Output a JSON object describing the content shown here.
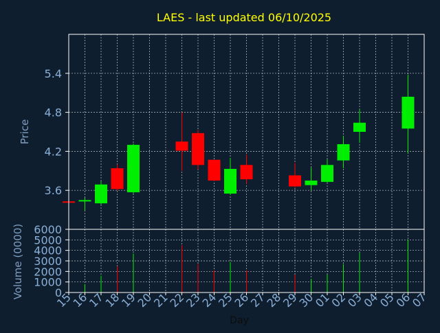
{
  "chart_data": {
    "type": "candlestick",
    "title": "LAES - last updated 06/10/2025",
    "xlabel": "Day",
    "price_panel": {
      "ylabel": "Price",
      "yticks": [
        3.6,
        4.2,
        4.8,
        5.4
      ],
      "ylim": [
        3.0,
        6.0
      ],
      "grid": true
    },
    "volume_panel": {
      "ylabel": "Volume (0000)",
      "yticks": [
        0,
        1000,
        2000,
        3000,
        4000,
        5000,
        6000
      ],
      "ylim": [
        0,
        6000
      ],
      "grid": true
    },
    "x_tick_labels": [
      "15",
      "16",
      "17",
      "18",
      "19",
      "20",
      "21",
      "22",
      "23",
      "24",
      "25",
      "26",
      "27",
      "28",
      "29",
      "30",
      "01",
      "02",
      "03",
      "04",
      "05",
      "06",
      "07"
    ],
    "candles": [
      {
        "day": "15",
        "open": 3.43,
        "high": 3.44,
        "low": 3.42,
        "close": 3.42,
        "volume": 0
      },
      {
        "day": "16",
        "open": 3.43,
        "high": 3.49,
        "low": 3.29,
        "close": 3.45,
        "volume": 800
      },
      {
        "day": "17",
        "open": 3.4,
        "high": 3.74,
        "low": 3.38,
        "close": 3.69,
        "volume": 1600
      },
      {
        "day": "18",
        "open": 3.94,
        "high": 4.0,
        "low": 3.6,
        "close": 3.62,
        "volume": 2500
      },
      {
        "day": "19",
        "open": 3.57,
        "high": 4.32,
        "low": 3.55,
        "close": 4.3,
        "volume": 3700
      },
      {
        "day": "22",
        "open": 4.35,
        "high": 4.8,
        "low": 3.9,
        "close": 4.21,
        "volume": 4500
      },
      {
        "day": "23",
        "open": 4.48,
        "high": 4.53,
        "low": 3.92,
        "close": 3.99,
        "volume": 2700
      },
      {
        "day": "24",
        "open": 4.07,
        "high": 4.07,
        "low": 3.74,
        "close": 3.75,
        "volume": 2100
      },
      {
        "day": "25",
        "open": 3.55,
        "high": 4.1,
        "low": 3.53,
        "close": 3.93,
        "volume": 2900
      },
      {
        "day": "26",
        "open": 3.99,
        "high": 4.15,
        "low": 3.7,
        "close": 3.77,
        "volume": 2100
      },
      {
        "day": "29",
        "open": 3.83,
        "high": 4.02,
        "low": 3.64,
        "close": 3.66,
        "volume": 1700
      },
      {
        "day": "30",
        "open": 3.68,
        "high": 3.95,
        "low": 3.6,
        "close": 3.75,
        "volume": 1300
      },
      {
        "day": "01",
        "open": 3.73,
        "high": 4.08,
        "low": 3.72,
        "close": 3.99,
        "volume": 1700
      },
      {
        "day": "02",
        "open": 4.06,
        "high": 4.44,
        "low": 3.94,
        "close": 4.31,
        "volume": 2700
      },
      {
        "day": "03",
        "open": 4.5,
        "high": 4.85,
        "low": 4.33,
        "close": 4.64,
        "volume": 3800
      },
      {
        "day": "06",
        "open": 4.55,
        "high": 5.38,
        "low": 4.17,
        "close": 5.04,
        "volume": 5000
      }
    ],
    "colors": {
      "background": "#0f1e2e",
      "up": "#00ee00",
      "down": "#ff0000",
      "grid": "#ffffff",
      "frame": "#ffffff",
      "axis_text": "#7f9ec1",
      "title": "#ffff00",
      "tick_label": "#8ab0d8",
      "xlabel": "#0c0c0c"
    }
  }
}
